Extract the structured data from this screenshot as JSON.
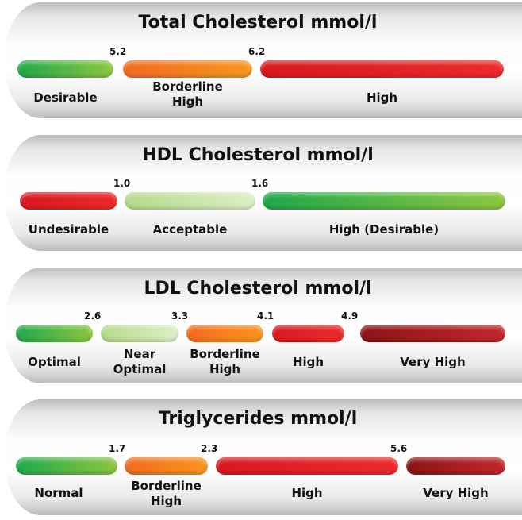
{
  "colors": {
    "green": "#1fa84a",
    "orange": "#f26a21",
    "red": "#d71920",
    "light_green": "#b5da8a",
    "dark_red": "#8a1414"
  },
  "panels": [
    {
      "title": "Total Cholesterol mmol/l",
      "thresholds": [
        "5.2",
        "6.2"
      ],
      "ranges": [
        [
          "Desirable"
        ],
        [
          "Borderline",
          "High"
        ],
        [
          "High"
        ]
      ]
    },
    {
      "title": "HDL Cholesterol mmol/l",
      "thresholds": [
        "1.0",
        "1.6"
      ],
      "ranges": [
        [
          "Undesirable"
        ],
        [
          "Acceptable"
        ],
        [
          "High (Desirable)"
        ]
      ]
    },
    {
      "title": "LDL Cholesterol mmol/l",
      "thresholds": [
        "2.6",
        "3.3",
        "4.1",
        "4.9"
      ],
      "ranges": [
        [
          "Optimal"
        ],
        [
          "Near",
          "Optimal"
        ],
        [
          "Borderline",
          "High"
        ],
        [
          "High"
        ],
        [
          "Very High"
        ]
      ]
    },
    {
      "title": "Triglycerides mmol/l",
      "thresholds": [
        "1.7",
        "2.3",
        "5.6"
      ],
      "ranges": [
        [
          "Normal"
        ],
        [
          "Borderline",
          "High"
        ],
        [
          "High"
        ],
        [
          "Very High"
        ]
      ]
    }
  ]
}
